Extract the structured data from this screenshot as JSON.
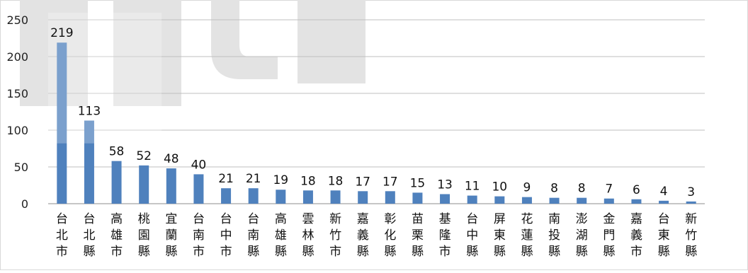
{
  "chart_data": {
    "type": "bar",
    "title": "",
    "xlabel": "",
    "ylabel": "",
    "ylim": [
      0,
      250
    ],
    "yticks": [
      0,
      50,
      100,
      150,
      200,
      250
    ],
    "grid": true,
    "legend": "none",
    "bar_color": "#4F81BD",
    "watermark_color": "#E3E3E3",
    "categories": [
      "台北市",
      "台北縣",
      "高雄市",
      "桃園縣",
      "宜蘭縣",
      "台南市",
      "台中市",
      "台南縣",
      "高雄縣",
      "雲林縣",
      "新竹市",
      "嘉義縣",
      "彰化縣",
      "苗栗縣",
      "基隆市",
      "台中縣",
      "屏東縣",
      "花蓮縣",
      "南投縣",
      "澎湖縣",
      "金門縣",
      "嘉義市",
      "台東縣",
      "新竹縣"
    ],
    "values": [
      219,
      113,
      58,
      52,
      48,
      40,
      21,
      21,
      19,
      18,
      18,
      17,
      17,
      15,
      13,
      11,
      10,
      9,
      8,
      8,
      7,
      6,
      4,
      3
    ]
  }
}
